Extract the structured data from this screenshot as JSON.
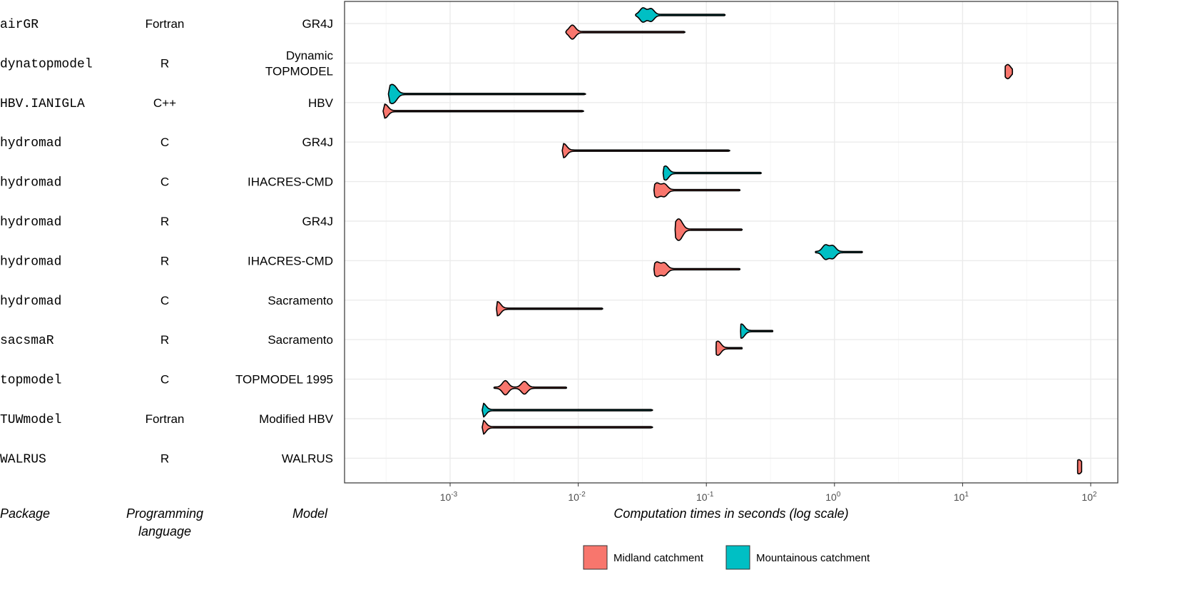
{
  "chart_data": {
    "type": "violin",
    "xlabel": "Computation times in seconds (log scale)",
    "xscale": "log10",
    "xlim": [
      0.00015,
      150
    ],
    "x_ticks": [
      {
        "value": 0.001,
        "base": "10",
        "exp": "-3"
      },
      {
        "value": 0.01,
        "base": "10",
        "exp": "-2"
      },
      {
        "value": 0.1,
        "base": "10",
        "exp": "-1"
      },
      {
        "value": 1,
        "base": "10",
        "exp": "0"
      },
      {
        "value": 10,
        "base": "10",
        "exp": "1"
      },
      {
        "value": 100,
        "base": "10",
        "exp": "2"
      }
    ],
    "column_headers": {
      "package": "Package",
      "language_1": "Programming",
      "language_2": "language",
      "model": "Model"
    },
    "legend": {
      "position": "bottom",
      "entries": [
        {
          "key": "midland",
          "label": "Midland catchment",
          "color": "#F8766D"
        },
        {
          "key": "mountain",
          "label": "Mountainous catchment",
          "color": "#00BFC4"
        }
      ]
    },
    "rows": [
      {
        "package": "airGR",
        "language": "Fortran",
        "model": [
          "GR4J"
        ],
        "mountain": {
          "min": 0.028,
          "max": 0.14,
          "modes": [
            0.032,
            0.037
          ]
        },
        "midland": {
          "min": 0.008,
          "max": 0.068,
          "modes": [
            0.009
          ]
        }
      },
      {
        "package": "dynatopmodel",
        "language": "R",
        "model": [
          "Dynamic",
          "TOPMODEL"
        ],
        "midland": {
          "min": 21.5,
          "max": 24.5,
          "modes": [
            22.5
          ]
        }
      },
      {
        "package": "HBV.IANIGLA",
        "language": "C++",
        "model": [
          "HBV"
        ],
        "mountain": {
          "min": 0.00033,
          "max": 0.0114,
          "modes": [
            0.00034,
            0.00037
          ]
        },
        "midland": {
          "min": 0.0003,
          "max": 0.011,
          "modes": [
            0.00031
          ]
        }
      },
      {
        "package": "hydromad",
        "language": "C",
        "model": [
          "GR4J"
        ],
        "midland": {
          "min": 0.0075,
          "max": 0.152,
          "modes": [
            0.0077
          ]
        }
      },
      {
        "package": "hydromad",
        "language": "C",
        "model": [
          "IHACRES-CMD"
        ],
        "mountain": {
          "min": 0.046,
          "max": 0.268,
          "modes": [
            0.048
          ]
        },
        "midland": {
          "min": 0.039,
          "max": 0.183,
          "modes": [
            0.041,
            0.047
          ]
        }
      },
      {
        "package": "hydromad",
        "language": "R",
        "model": [
          "GR4J"
        ],
        "midland": {
          "min": 0.057,
          "max": 0.19,
          "modes": [
            0.059,
            0.063
          ]
        }
      },
      {
        "package": "hydromad",
        "language": "R",
        "model": [
          "IHACRES-CMD"
        ],
        "mountain": {
          "min": 0.71,
          "max": 1.65,
          "modes": [
            0.85,
            0.97
          ]
        },
        "midland": {
          "min": 0.039,
          "max": 0.183,
          "modes": [
            0.041,
            0.047
          ]
        }
      },
      {
        "package": "hydromad",
        "language": "C",
        "model": [
          "Sacramento"
        ],
        "midland": {
          "min": 0.0023,
          "max": 0.0155,
          "modes": [
            0.00235
          ]
        }
      },
      {
        "package": "sacsmaR",
        "language": "R",
        "model": [
          "Sacramento"
        ],
        "mountain": {
          "min": 0.185,
          "max": 0.33,
          "modes": [
            0.188
          ]
        },
        "midland": {
          "min": 0.119,
          "max": 0.19,
          "modes": [
            0.123
          ]
        }
      },
      {
        "package": "topmodel",
        "language": "C",
        "model": [
          "TOPMODEL 1995"
        ],
        "midland": {
          "min": 0.0022,
          "max": 0.0081,
          "modes": [
            0.0027,
            0.0038
          ]
        }
      },
      {
        "package": "TUWmodel",
        "language": "Fortran",
        "model": [
          "Modified HBV"
        ],
        "mountain": {
          "min": 0.00178,
          "max": 0.038,
          "modes": [
            0.0018
          ]
        },
        "midland": {
          "min": 0.00178,
          "max": 0.038,
          "modes": [
            0.0018
          ]
        }
      },
      {
        "package": "WALRUS",
        "language": "R",
        "model": [
          "WALRUS"
        ],
        "midland": {
          "min": 79,
          "max": 85,
          "modes": [
            81
          ]
        }
      }
    ]
  }
}
